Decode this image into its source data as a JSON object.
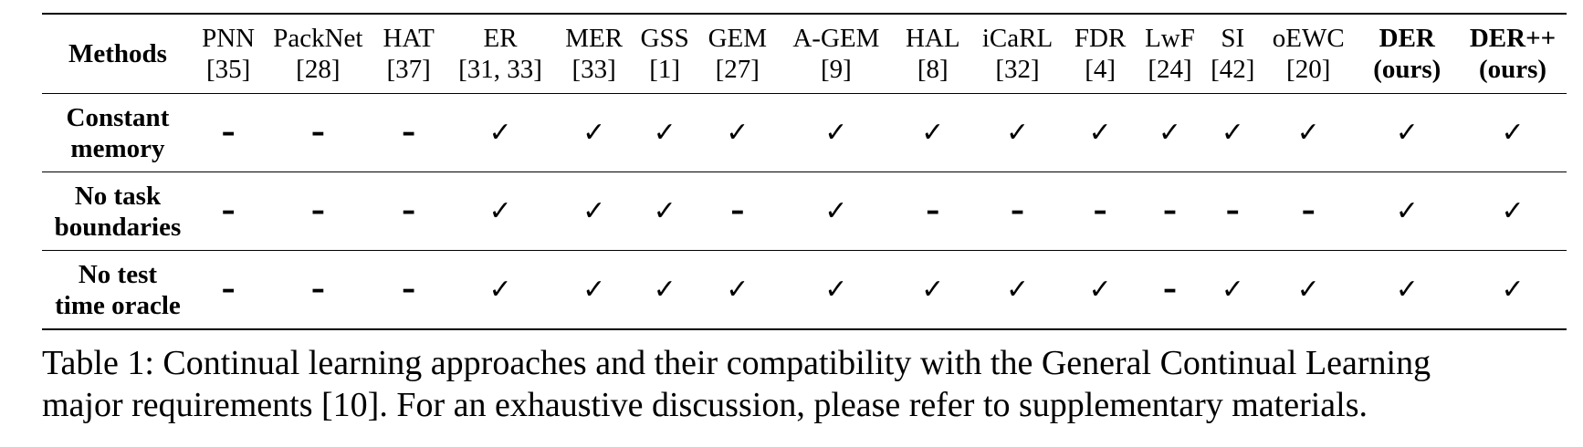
{
  "table": {
    "header_label": "Methods",
    "columns": [
      {
        "name": "PNN",
        "ref": "[35]",
        "bold": false
      },
      {
        "name": "PackNet",
        "ref": "[28]",
        "bold": false
      },
      {
        "name": "HAT",
        "ref": "[37]",
        "bold": false
      },
      {
        "name": "ER",
        "ref": "[31, 33]",
        "bold": false
      },
      {
        "name": "MER",
        "ref": "[33]",
        "bold": false
      },
      {
        "name": "GSS",
        "ref": "[1]",
        "bold": false
      },
      {
        "name": "GEM",
        "ref": "[27]",
        "bold": false
      },
      {
        "name": "A-GEM",
        "ref": "[9]",
        "bold": false
      },
      {
        "name": "HAL",
        "ref": "[8]",
        "bold": false
      },
      {
        "name": "iCaRL",
        "ref": "[32]",
        "bold": false
      },
      {
        "name": "FDR",
        "ref": "[4]",
        "bold": false
      },
      {
        "name": "LwF",
        "ref": "[24]",
        "bold": false
      },
      {
        "name": "SI",
        "ref": "[42]",
        "bold": false
      },
      {
        "name": "oEWC",
        "ref": "[20]",
        "bold": false
      },
      {
        "name": "DER",
        "ref": "(ours)",
        "bold": true
      },
      {
        "name": "DER++",
        "ref": "(ours)",
        "bold": true
      }
    ],
    "rows": [
      {
        "label_lines": [
          "Constant",
          "memory"
        ],
        "cells": [
          "–",
          "–",
          "–",
          "✓",
          "✓",
          "✓",
          "✓",
          "✓",
          "✓",
          "✓",
          "✓",
          "✓",
          "✓",
          "✓",
          "✓",
          "✓"
        ]
      },
      {
        "label_lines": [
          "No task",
          "boundaries"
        ],
        "cells": [
          "–",
          "–",
          "–",
          "✓",
          "✓",
          "✓",
          "–",
          "✓",
          "–",
          "–",
          "–",
          "–",
          "–",
          "–",
          "✓",
          "✓"
        ]
      },
      {
        "label_lines": [
          "No test",
          "time oracle"
        ],
        "cells": [
          "–",
          "–",
          "–",
          "✓",
          "✓",
          "✓",
          "✓",
          "✓",
          "✓",
          "✓",
          "✓",
          "–",
          "✓",
          "✓",
          "✓",
          "✓"
        ]
      }
    ]
  },
  "caption": {
    "line1": "Table 1: Continual learning approaches and their compatibility with the General Continual Learning",
    "line2": "major requirements [10]. For an exhaustive discussion, please refer to supplementary materials."
  }
}
